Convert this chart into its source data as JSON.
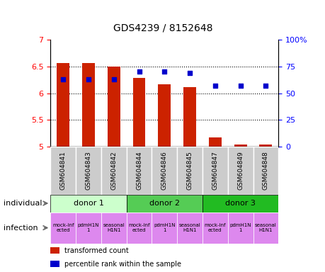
{
  "title": "GDS4239 / 8152648",
  "samples": [
    "GSM604841",
    "GSM604843",
    "GSM604842",
    "GSM604844",
    "GSM604846",
    "GSM604845",
    "GSM604847",
    "GSM604849",
    "GSM604848"
  ],
  "bar_values": [
    6.56,
    6.56,
    6.5,
    6.28,
    6.17,
    6.11,
    5.17,
    5.05,
    5.05
  ],
  "scatter_values": [
    63,
    63,
    63,
    70,
    70,
    69,
    57,
    57,
    57
  ],
  "ylim_left": [
    5.0,
    7.0
  ],
  "ylim_right": [
    0,
    100
  ],
  "yticks_left": [
    5.0,
    5.5,
    6.0,
    6.5,
    7.0
  ],
  "yticks_right": [
    0,
    25,
    50,
    75,
    100
  ],
  "ytick_labels_left": [
    "5",
    "5.5",
    "6",
    "6.5",
    "7"
  ],
  "ytick_labels_right": [
    "0",
    "25",
    "50",
    "75",
    "100%"
  ],
  "grid_lines": [
    5.5,
    6.0,
    6.5
  ],
  "bar_color": "#cc2200",
  "scatter_color": "#0000cc",
  "bar_width": 0.5,
  "donors": [
    {
      "label": "donor 1",
      "start": 0,
      "end": 3,
      "color": "#ccffcc"
    },
    {
      "label": "donor 2",
      "start": 3,
      "end": 6,
      "color": "#55cc55"
    },
    {
      "label": "donor 3",
      "start": 6,
      "end": 9,
      "color": "#22bb22"
    }
  ],
  "infection_labels": [
    "mock-inf\nected",
    "pdmH1N\n1",
    "seasonal\nH1N1",
    "mock-inf\nected",
    "pdmH1N\n1",
    "seasonal\nH1N1",
    "mock-inf\nected",
    "pdmH1N\n1",
    "seasonal\nH1N1"
  ],
  "infection_color": "#dd88ee",
  "sample_box_color": "#cccccc",
  "row_label_individual": "individual",
  "row_label_infection": "infection",
  "legend_items": [
    {
      "color": "#cc2200",
      "label": "transformed count"
    },
    {
      "color": "#0000cc",
      "label": "percentile rank within the sample"
    }
  ]
}
